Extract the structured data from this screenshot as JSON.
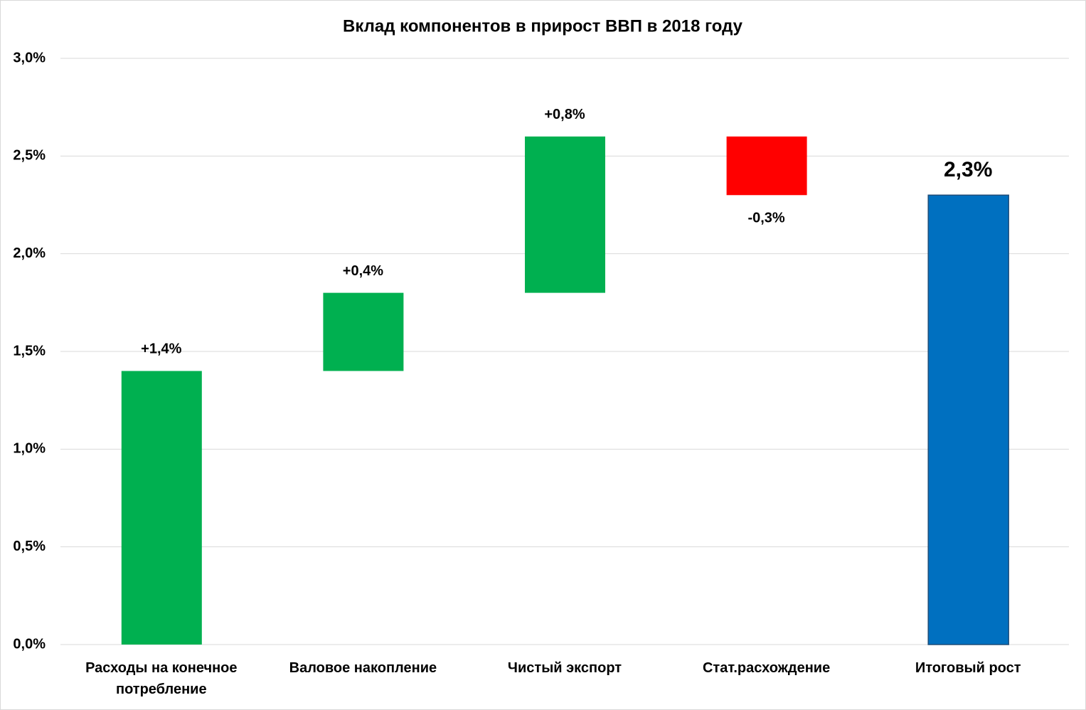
{
  "chart_data": {
    "type": "waterfall",
    "title": "Вклад компонентов в прирост ВВП в 2018 году",
    "categories": [
      "Расходы на конечное потребление",
      "Валовое накопление",
      "Чистый экспорт",
      "Стат.расхождение",
      "Итоговый рост"
    ],
    "values": [
      1.4,
      0.4,
      0.8,
      -0.3,
      2.3
    ],
    "value_labels": [
      "+1,4%",
      "+0,4%",
      "+0,8%",
      "-0,3%",
      "2,3%"
    ],
    "totals": [
      false,
      false,
      false,
      false,
      true
    ],
    "colors": [
      "#00b050",
      "#00b050",
      "#00b050",
      "#ff0000",
      "#0070c0"
    ],
    "ylim": [
      0,
      3
    ],
    "yticks": [
      {
        "value": 0,
        "label": "0,0%"
      },
      {
        "value": 0.5,
        "label": "0,5%"
      },
      {
        "value": 1,
        "label": "1,0%"
      },
      {
        "value": 1.5,
        "label": "1,5%"
      },
      {
        "value": 2,
        "label": "2,0%"
      },
      {
        "value": 2.5,
        "label": "2,5%"
      },
      {
        "value": 3,
        "label": "3,0%"
      }
    ],
    "grid": true
  }
}
